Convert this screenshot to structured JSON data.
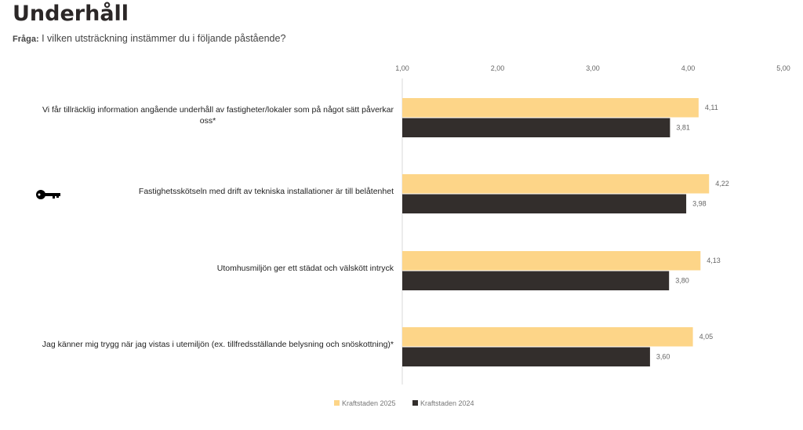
{
  "header": {
    "title": "Underhåll",
    "question_label": "Fråga:",
    "question": "I vilken utsträckning instämmer du i följande påstående?"
  },
  "chart_data": {
    "type": "bar",
    "orientation": "horizontal",
    "xlim": [
      1,
      5
    ],
    "ticks": [
      "1,00",
      "2,00",
      "3,00",
      "4,00",
      "5,00"
    ],
    "tick_values": [
      1,
      2,
      3,
      4,
      5
    ],
    "categories": [
      [
        "Vi får tillräcklig information angående underhåll av fastigheter/lokaler som på något sätt påverkar",
        "oss*"
      ],
      [
        "Fastighetsskötseln med drift av tekniska installationer är till belåtenhet"
      ],
      [
        "Utomhusmiljön ger ett städat och välskött intryck"
      ],
      [
        "Jag känner mig trygg när jag vistas i utemiljön (ex. tillfredsställande belysning och snöskottning)*"
      ]
    ],
    "series": [
      {
        "name": "Kraftstaden 2025",
        "color": "#FDD588",
        "values": [
          4.11,
          4.22,
          4.13,
          4.05
        ],
        "labels": [
          "4,11",
          "4,22",
          "4,13",
          "4,05"
        ]
      },
      {
        "name": "Kraftstaden 2024",
        "color": "#332E2C",
        "values": [
          3.81,
          3.98,
          3.8,
          3.6
        ],
        "labels": [
          "3,81",
          "3,98",
          "3,80",
          "3,60"
        ]
      }
    ],
    "legend": "bottom",
    "grid": false
  },
  "icons": {
    "decor": "key-icon"
  }
}
